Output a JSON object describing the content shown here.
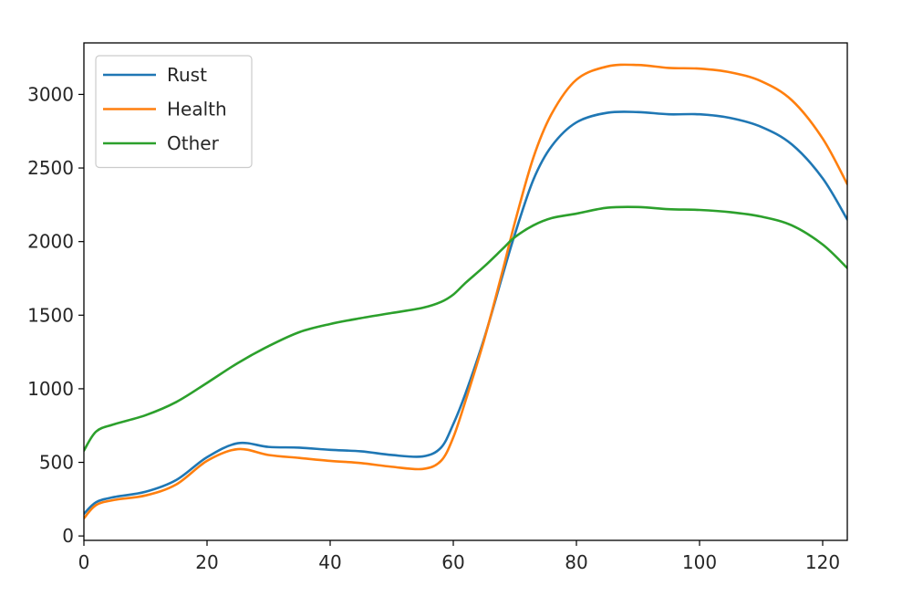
{
  "chart_data": {
    "type": "line",
    "title": "",
    "xlabel": "",
    "ylabel": "",
    "xlim": [
      0,
      124
    ],
    "ylim": [
      -30,
      3350
    ],
    "grid": false,
    "legend_position": "top-left",
    "x_ticks": [
      0,
      20,
      40,
      60,
      80,
      100,
      120
    ],
    "y_ticks": [
      0,
      500,
      1000,
      1500,
      2000,
      2500,
      3000
    ],
    "x": [
      0,
      2,
      5,
      10,
      15,
      20,
      25,
      30,
      35,
      40,
      45,
      50,
      55,
      58,
      60,
      62,
      65,
      68,
      70,
      73,
      76,
      80,
      85,
      90,
      95,
      100,
      105,
      110,
      115,
      120,
      124
    ],
    "series": [
      {
        "name": "Rust",
        "color": "#1f77b4",
        "values": [
          150,
          230,
          265,
          300,
          380,
          535,
          630,
          605,
          600,
          585,
          575,
          550,
          540,
          600,
          760,
          970,
          1340,
          1770,
          2050,
          2420,
          2650,
          2810,
          2875,
          2880,
          2865,
          2865,
          2840,
          2780,
          2660,
          2430,
          2150
        ]
      },
      {
        "name": "Health",
        "color": "#ff7f0e",
        "values": [
          120,
          210,
          245,
          275,
          350,
          510,
          590,
          550,
          530,
          510,
          495,
          470,
          455,
          510,
          670,
          920,
          1330,
          1800,
          2130,
          2570,
          2870,
          3100,
          3190,
          3200,
          3180,
          3175,
          3150,
          3090,
          2960,
          2700,
          2390
        ]
      },
      {
        "name": "Other",
        "color": "#2ca02c",
        "values": [
          580,
          710,
          760,
          820,
          910,
          1040,
          1175,
          1290,
          1385,
          1440,
          1480,
          1515,
          1550,
          1590,
          1640,
          1720,
          1830,
          1950,
          2030,
          2110,
          2160,
          2190,
          2230,
          2235,
          2220,
          2215,
          2200,
          2170,
          2110,
          1980,
          1820
        ]
      }
    ]
  }
}
